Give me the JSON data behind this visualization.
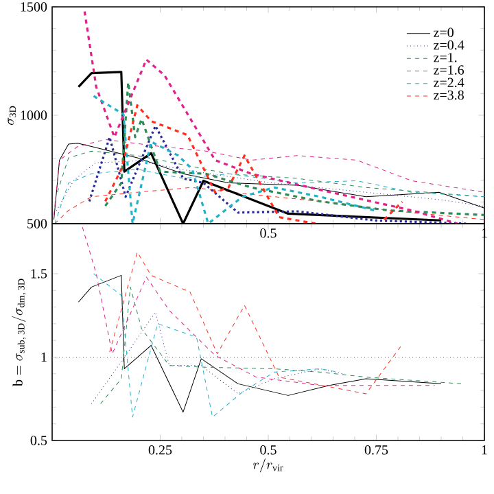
{
  "chart_data": [
    {
      "type": "line",
      "ylabel": "\\sigma_{\\mathrm{3D}}",
      "xlim": [
        0,
        1
      ],
      "ylim": [
        500,
        1500
      ],
      "xticks": [
        {
          "value": 0.25,
          "label": null
        },
        0.5,
        {
          "value": 0.75,
          "label": null
        },
        1
      ],
      "yticks": [
        500,
        1000,
        1500
      ],
      "legend": "top right",
      "series": [
        {
          "name": "z=0",
          "color": "#000000",
          "line_style": "solid",
          "x": [
            0.004,
            0.017,
            0.038,
            0.059,
            0.091,
            0.197,
            0.303,
            0.408,
            0.567,
            0.726,
            0.895,
            1.0
          ],
          "values": [
            519,
            793,
            867,
            871,
            856,
            804,
            730,
            688,
            677,
            624,
            645,
            572
          ]
        },
        {
          "name": "z=0.4",
          "color": "#2a2a9a",
          "line_style": "dotted",
          "x": [
            0.01,
            0.05,
            0.1,
            0.2,
            0.3,
            0.4,
            0.5,
            0.6,
            0.7,
            0.8,
            0.9,
            1.0
          ],
          "values": [
            560,
            700,
            780,
            790,
            750,
            720,
            690,
            670,
            650,
            630,
            610,
            580
          ]
        },
        {
          "name": "z=1.",
          "color": "#2e8b57",
          "line_style": "dashed",
          "x": [
            0.012,
            0.038,
            0.091,
            0.197,
            0.303,
            0.408,
            0.567,
            0.726,
            1.0
          ],
          "values": [
            645,
            804,
            835,
            814,
            772,
            730,
            709,
            667,
            624
          ]
        },
        {
          "name": "z=1.6",
          "color": "#e0218a",
          "line_style": "dashed",
          "x": [
            0.004,
            0.017,
            0.059,
            0.123,
            0.25,
            0.356,
            0.461,
            0.567,
            0.705,
            0.832,
            1.0
          ],
          "values": [
            540,
            793,
            856,
            888,
            856,
            835,
            793,
            814,
            793,
            698,
            645
          ]
        },
        {
          "name": "z=2.4",
          "color": "#20b2c8",
          "line_style": "dashed",
          "x": [
            0.006,
            0.038,
            0.091,
            0.197,
            0.303,
            0.408,
            0.567,
            0.705,
            0.832,
            1.0
          ],
          "values": [
            500,
            688,
            730,
            751,
            709,
            730,
            688,
            698,
            645,
            624
          ]
        },
        {
          "name": "z=3.8",
          "color": "#ff3020",
          "line_style": "dashed",
          "x": [
            0.006,
            0.038,
            0.091,
            0.197,
            0.324,
            0.461,
            0.62,
            0.779,
            1.0
          ],
          "values": [
            500,
            561,
            624,
            645,
            667,
            635,
            603,
            561,
            519
          ]
        },
        {
          "color": "#000000",
          "line_style": "solid",
          "x": [
            0.061,
            0.091,
            0.16,
            0.167,
            0.229,
            0.303,
            0.35,
            0.546,
            0.9
          ],
          "values": [
            1131,
            1194,
            1200,
            740,
            825,
            500,
            698,
            546,
            515
          ]
        },
        {
          "color": "#2a2a9a",
          "line_style": "dotted",
          "x": [
            0.086,
            0.133,
            0.17,
            0.239,
            0.303,
            0.35,
            0.43,
            0.567,
            0.747,
            0.959
          ],
          "values": [
            603,
            899,
            624,
            951,
            709,
            688,
            551,
            557,
            515,
            500
          ]
        },
        {
          "color": "#2e8b57",
          "line_style": "dashed",
          "x": [
            0.123,
            0.16,
            0.176,
            0.192,
            0.207,
            0.25,
            0.356,
            0.461,
            0.62,
            0.779,
            1.0
          ],
          "values": [
            582,
            688,
            1152,
            899,
            983,
            740,
            730,
            667,
            603,
            561,
            540
          ]
        },
        {
          "color": "#e0218a",
          "line_style": "dashed",
          "x": [
            0.075,
            0.102,
            0.144,
            0.218,
            0.26,
            0.377,
            0.461,
            0.62,
            0.832,
            0.938
          ],
          "values": [
            1479,
            1131,
            899,
            1257,
            1184,
            793,
            730,
            656,
            561,
            500
          ]
        },
        {
          "color": "#20b2c8",
          "line_style": "dashed",
          "x": [
            0.096,
            0.165,
            0.186,
            0.229,
            0.292,
            0.324,
            0.361,
            0.44,
            0.514,
            0.62,
            0.747
          ],
          "values": [
            1089,
            1004,
            500,
            878,
            814,
            751,
            500,
            624,
            667,
            624,
            561
          ]
        },
        {
          "color": "#ff3020",
          "line_style": "dashed",
          "x": [
            0.123,
            0.16,
            0.197,
            0.229,
            0.313,
            0.377,
            0.408,
            0.445,
            0.525,
            0.61,
            0.7,
            0.768,
            0.81
          ],
          "values": [
            603,
            751,
            1046,
            973,
            909,
            645,
            667,
            814,
            530,
            500,
            null,
            519,
            601
          ]
        }
      ]
    },
    {
      "type": "line",
      "xlabel": "r/r_{\\mathrm{vir}}",
      "ylabel": "\\mathrm{b}=\\sigma_{\\mathrm{sub,\\,3D}}/\\sigma_{\\mathrm{dm,\\,3D}}",
      "xlim": [
        0,
        1
      ],
      "ylim": [
        0.5,
        1.8
      ],
      "xticks": [
        0.25,
        0.5,
        0.75,
        1
      ],
      "yticks": [
        0.5,
        1,
        1.5
      ],
      "ref_lines": [
        {
          "axis": "y",
          "value": 1,
          "color": "#555555",
          "line_style": "dotted"
        }
      ],
      "series": [
        {
          "color": "#000000",
          "line_style": "solid",
          "x": [
            0.061,
            0.091,
            0.16,
            0.167,
            0.229,
            0.303,
            0.345,
            0.43,
            0.546,
            0.641,
            0.726,
            0.9
          ],
          "values": [
            1.33,
            1.42,
            1.49,
            0.93,
            1.07,
            0.67,
            0.99,
            0.84,
            0.77,
            0.83,
            0.87,
            0.84
          ]
        },
        {
          "color": "#2a2a9a",
          "line_style": "dotted",
          "x": [
            0.091,
            0.17,
            0.239,
            0.271,
            0.345,
            0.43,
            0.514,
            0.62,
            0.673
          ],
          "values": [
            0.72,
            1.01,
            1.27,
            0.95,
            0.95,
            0.78,
            0.87,
            0.93,
            0.9
          ]
        },
        {
          "color": "#2e8b57",
          "line_style": "dashed",
          "x": [
            0.112,
            0.16,
            0.181,
            0.207,
            0.271,
            0.345,
            0.514,
            0.62,
            0.726,
            0.948
          ],
          "values": [
            0.72,
            0.87,
            1.42,
            1.17,
            0.95,
            0.94,
            0.93,
            0.91,
            0.88,
            0.84
          ]
        },
        {
          "color": "#e0218a",
          "line_style": "dashed",
          "x": [
            0.07,
            0.102,
            0.139,
            0.181,
            0.218,
            0.271,
            0.377,
            0.472,
            0.62,
            0.885
          ],
          "values": [
            1.78,
            1.5,
            1.02,
            1.26,
            1.48,
            1.28,
            1.01,
            0.88,
            0.83,
            0.83
          ]
        },
        {
          "color": "#20b2c8",
          "line_style": "dashed",
          "x": [
            0.096,
            0.16,
            0.186,
            0.244,
            0.334,
            0.371,
            0.44,
            0.514,
            0.62,
            0.662
          ],
          "values": [
            1.5,
            1.37,
            0.64,
            1.2,
            1.12,
            0.64,
            0.79,
            0.91,
            0.93,
            0.91
          ]
        },
        {
          "color": "#ff3020",
          "line_style": "dashed",
          "x": [
            0.133,
            0.197,
            0.229,
            0.319,
            0.382,
            0.445,
            0.525,
            0.726,
            0.811
          ],
          "values": [
            1.03,
            1.63,
            1.49,
            1.39,
            1.02,
            1.31,
            0.88,
            0.78,
            1.08
          ]
        }
      ]
    }
  ]
}
